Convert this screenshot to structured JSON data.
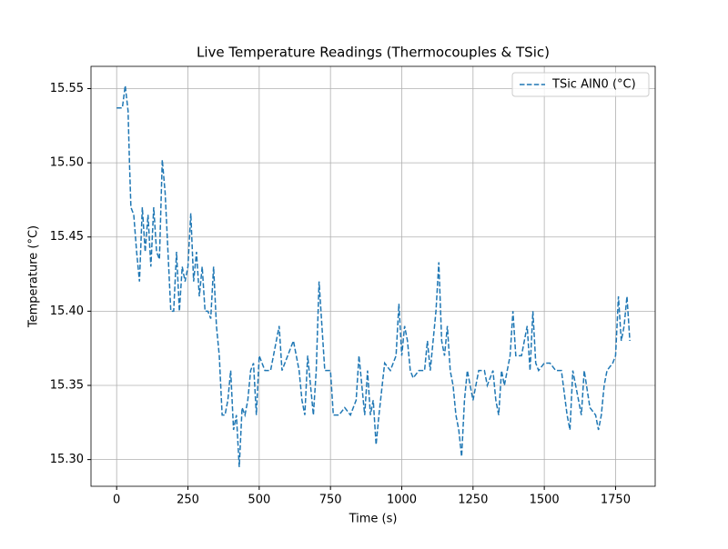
{
  "chart_data": {
    "type": "line",
    "title": "Live Temperature Readings (Thermocouples & TSic)",
    "x_label": "Time (s)",
    "y_label": "Temperature (°C)",
    "x": [
      0,
      20,
      30,
      40,
      45,
      50,
      60,
      70,
      80,
      90,
      100,
      110,
      120,
      130,
      140,
      150,
      160,
      170,
      180,
      190,
      200,
      210,
      220,
      230,
      240,
      250,
      260,
      270,
      280,
      290,
      300,
      310,
      320,
      330,
      340,
      350,
      360,
      370,
      380,
      390,
      400,
      410,
      420,
      430,
      440,
      450,
      460,
      470,
      480,
      490,
      500,
      520,
      540,
      560,
      570,
      580,
      600,
      620,
      640,
      650,
      660,
      670,
      690,
      700,
      710,
      720,
      730,
      750,
      760,
      780,
      800,
      820,
      840,
      850,
      860,
      870,
      880,
      890,
      900,
      910,
      920,
      940,
      960,
      980,
      990,
      1000,
      1010,
      1020,
      1030,
      1040,
      1060,
      1080,
      1090,
      1100,
      1110,
      1120,
      1130,
      1140,
      1150,
      1160,
      1170,
      1180,
      1190,
      1200,
      1210,
      1220,
      1230,
      1250,
      1270,
      1290,
      1300,
      1320,
      1330,
      1340,
      1350,
      1360,
      1370,
      1380,
      1390,
      1400,
      1420,
      1440,
      1450,
      1460,
      1470,
      1480,
      1500,
      1520,
      1540,
      1560,
      1580,
      1590,
      1600,
      1620,
      1630,
      1640,
      1660,
      1680,
      1690,
      1700,
      1710,
      1720,
      1740,
      1750,
      1760,
      1770,
      1780,
      1790,
      1800
    ],
    "series": [
      {
        "name": "TSic AIN0 (°C)",
        "color": "#1f77b4",
        "values": [
          15.537,
          15.537,
          15.552,
          15.535,
          15.5,
          15.47,
          15.465,
          15.44,
          15.42,
          15.47,
          15.44,
          15.465,
          15.43,
          15.47,
          15.44,
          15.435,
          15.502,
          15.48,
          15.44,
          15.4,
          15.4,
          15.44,
          15.4,
          15.43,
          15.42,
          15.43,
          15.466,
          15.42,
          15.44,
          15.41,
          15.43,
          15.4,
          15.4,
          15.395,
          15.43,
          15.39,
          15.37,
          15.33,
          15.33,
          15.34,
          15.36,
          15.32,
          15.33,
          15.295,
          15.335,
          15.33,
          15.34,
          15.36,
          15.365,
          15.33,
          15.37,
          15.36,
          15.36,
          15.38,
          15.39,
          15.36,
          15.37,
          15.38,
          15.36,
          15.34,
          15.33,
          15.37,
          15.33,
          15.36,
          15.42,
          15.39,
          15.36,
          15.36,
          15.33,
          15.33,
          15.335,
          15.33,
          15.34,
          15.37,
          15.35,
          15.33,
          15.36,
          15.33,
          15.34,
          15.31,
          15.33,
          15.365,
          15.36,
          15.37,
          15.405,
          15.37,
          15.39,
          15.38,
          15.36,
          15.355,
          15.36,
          15.36,
          15.38,
          15.36,
          15.38,
          15.4,
          15.433,
          15.38,
          15.37,
          15.39,
          15.36,
          15.35,
          15.33,
          15.32,
          15.302,
          15.34,
          15.36,
          15.34,
          15.36,
          15.36,
          15.35,
          15.36,
          15.34,
          15.33,
          15.36,
          15.35,
          15.36,
          15.37,
          15.4,
          15.37,
          15.37,
          15.39,
          15.36,
          15.4,
          15.365,
          15.36,
          15.365,
          15.365,
          15.36,
          15.36,
          15.33,
          15.32,
          15.36,
          15.34,
          15.33,
          15.36,
          15.335,
          15.33,
          15.32,
          15.33,
          15.35,
          15.36,
          15.365,
          15.37,
          15.41,
          15.38,
          15.39,
          15.41,
          15.38
        ]
      }
    ],
    "xlim": [
      -90,
      1889
    ],
    "xticks": [
      0,
      250,
      500,
      750,
      1000,
      1250,
      1500,
      1750
    ],
    "ylim": [
      15.282,
      15.565
    ],
    "yticks": [
      {
        "value": 15.3,
        "label": "15.30"
      },
      15.35,
      {
        "value": 15.4,
        "label": "15.40"
      },
      15.45,
      {
        "value": 15.5,
        "label": "15.50"
      },
      15.55
    ],
    "grid": true,
    "legend": "upper right"
  }
}
